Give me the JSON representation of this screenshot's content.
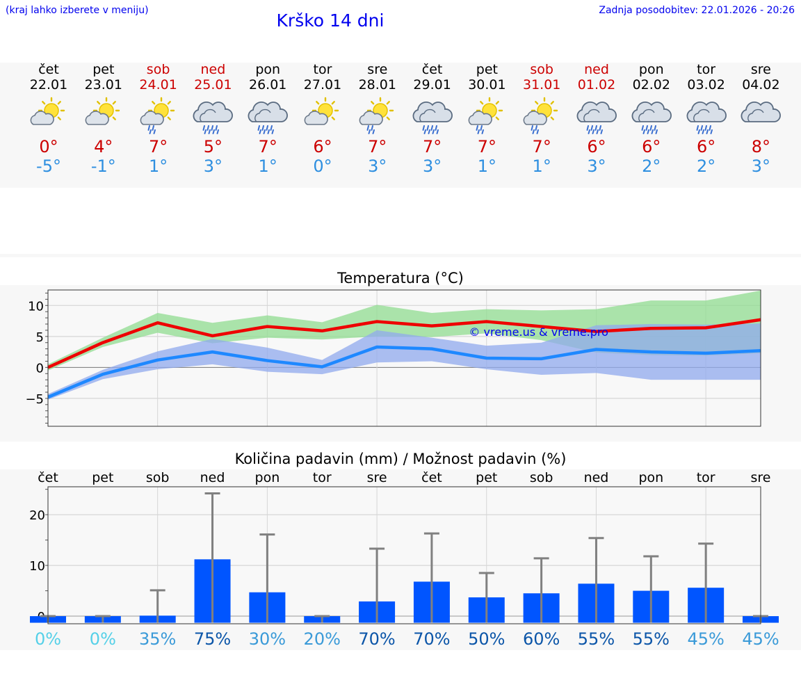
{
  "header": {
    "hint": "(kraj lahko izberete v meniju)",
    "title": "Krško 14 dni",
    "updated": "Zadnja posodobitev: 22.01.2026 - 20:26"
  },
  "days": [
    {
      "name": "čet",
      "date": "22.01",
      "weekend": false,
      "icon": "sun-cloud-icon",
      "tmax": "0°",
      "tmin": "-5°"
    },
    {
      "name": "pet",
      "date": "23.01",
      "weekend": false,
      "icon": "sun-cloud-icon",
      "tmax": "4°",
      "tmin": "-1°"
    },
    {
      "name": "sob",
      "date": "24.01",
      "weekend": true,
      "icon": "sun-rain-icon",
      "tmax": "7°",
      "tmin": "1°"
    },
    {
      "name": "ned",
      "date": "25.01",
      "weekend": true,
      "icon": "cloud-rain-icon",
      "tmax": "5°",
      "tmin": "3°"
    },
    {
      "name": "pon",
      "date": "26.01",
      "weekend": false,
      "icon": "cloud-rain-icon",
      "tmax": "7°",
      "tmin": "1°"
    },
    {
      "name": "tor",
      "date": "27.01",
      "weekend": false,
      "icon": "sun-cloud-icon",
      "tmax": "6°",
      "tmin": "0°"
    },
    {
      "name": "sre",
      "date": "28.01",
      "weekend": false,
      "icon": "sun-rain-icon",
      "tmax": "7°",
      "tmin": "3°"
    },
    {
      "name": "čet",
      "date": "29.01",
      "weekend": false,
      "icon": "cloud-rain-icon",
      "tmax": "7°",
      "tmin": "3°"
    },
    {
      "name": "pet",
      "date": "30.01",
      "weekend": false,
      "icon": "sun-rain-icon",
      "tmax": "7°",
      "tmin": "1°"
    },
    {
      "name": "sob",
      "date": "31.01",
      "weekend": true,
      "icon": "sun-rain-icon",
      "tmax": "7°",
      "tmin": "1°"
    },
    {
      "name": "ned",
      "date": "01.02",
      "weekend": true,
      "icon": "cloud-rain-icon",
      "tmax": "6°",
      "tmin": "3°"
    },
    {
      "name": "pon",
      "date": "02.02",
      "weekend": false,
      "icon": "cloud-rain-icon",
      "tmax": "6°",
      "tmin": "2°"
    },
    {
      "name": "tor",
      "date": "03.02",
      "weekend": false,
      "icon": "cloud-rain-icon",
      "tmax": "6°",
      "tmin": "2°"
    },
    {
      "name": "sre",
      "date": "04.02",
      "weekend": false,
      "icon": "cloud-icon",
      "tmax": "8°",
      "tmin": "3°"
    }
  ],
  "colors": {
    "max_line": "#ee0000",
    "min_line": "#1e88ff",
    "max_band": "#90dc90",
    "min_band": "#90aaee",
    "bar": "#0055ff",
    "whisker": "#808080"
  },
  "chart_data": [
    {
      "type": "line",
      "title": "Temperatura (°C)",
      "watermark": "© vreme.us & vreme.pro",
      "ylim": [
        -9.5,
        12.5
      ],
      "yticks": [
        -5,
        0,
        5,
        10
      ],
      "x": [
        0,
        1,
        2,
        3,
        4,
        5,
        6,
        7,
        8,
        9,
        10,
        11,
        12,
        13
      ],
      "series": [
        {
          "name": "max",
          "values": [
            0,
            4,
            7.2,
            5.1,
            6.6,
            5.9,
            7.4,
            6.7,
            7.4,
            6.6,
            5.8,
            6.3,
            6.4,
            7.7
          ],
          "band_low": [
            -0.5,
            3.3,
            5.6,
            3.9,
            4.8,
            4.5,
            5.0,
            4.9,
            5.5,
            4.4,
            2.4,
            2.0,
            1.9,
            2.3
          ],
          "band_high": [
            0.5,
            4.8,
            8.8,
            7.2,
            8.4,
            7.3,
            10.1,
            8.8,
            9.4,
            9.2,
            9.4,
            10.8,
            10.8,
            12.4
          ]
        },
        {
          "name": "min",
          "values": [
            -4.8,
            -1.1,
            1.2,
            2.5,
            1.1,
            0.1,
            3.3,
            3.0,
            1.5,
            1.4,
            2.9,
            2.5,
            2.3,
            2.7
          ],
          "band_low": [
            -5.2,
            -1.9,
            -0.3,
            0.5,
            -0.7,
            -1.1,
            0.8,
            1.0,
            -0.3,
            -1.2,
            -0.9,
            -2.0,
            -2.0,
            -2.0
          ],
          "band_high": [
            -4.3,
            -0.4,
            2.6,
            4.6,
            3.2,
            1.2,
            6.0,
            4.8,
            3.5,
            4.0,
            6.8,
            7.0,
            6.9,
            7.1
          ]
        }
      ]
    },
    {
      "type": "bar",
      "title": "Količina padavin (mm) / Možnost padavin (%)",
      "categories": [
        "čet",
        "pet",
        "sob",
        "ned",
        "pon",
        "tor",
        "sre",
        "čet",
        "pet",
        "sob",
        "ned",
        "pon",
        "tor",
        "sre"
      ],
      "ylim": [
        -1.5,
        25.5
      ],
      "yticks": [
        0,
        10,
        20
      ],
      "values": [
        0,
        0,
        0.1,
        11.2,
        4.7,
        0,
        2.9,
        6.8,
        3.7,
        4.5,
        6.4,
        5.0,
        5.6,
        0
      ],
      "error_high": [
        0,
        0,
        5.1,
        24.2,
        16.1,
        0,
        13.3,
        16.3,
        8.5,
        11.4,
        15.4,
        11.8,
        14.3,
        0
      ],
      "probability": [
        "0%",
        "0%",
        "35%",
        "75%",
        "30%",
        "20%",
        "70%",
        "70%",
        "50%",
        "60%",
        "55%",
        "55%",
        "45%",
        "45%"
      ],
      "probability_colors": [
        "#55d0e8",
        "#55d0e8",
        "#3a9ad8",
        "#0b55a8",
        "#3a9ad8",
        "#3a9ad8",
        "#0b55a8",
        "#0b55a8",
        "#0b55a8",
        "#0b55a8",
        "#0b55a8",
        "#0b55a8",
        "#3a9ad8",
        "#3a9ad8"
      ]
    }
  ]
}
